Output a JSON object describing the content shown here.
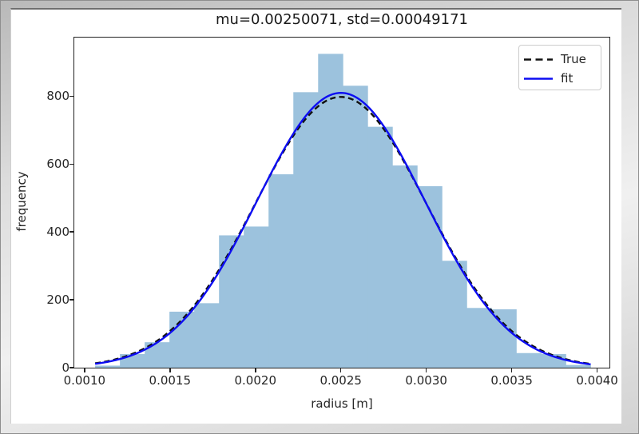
{
  "figure": {
    "background": "#ffffff",
    "frame_color": "#c9c9c9"
  },
  "chart_data": {
    "type": "histogram_with_fit_lines",
    "title": "mu=0.00250071, std=0.00049171",
    "xlabel": "radius [m]",
    "ylabel": "frequency",
    "xlim": [
      0.00094,
      0.004072
    ],
    "ylim": [
      0,
      973
    ],
    "grid": false,
    "legend_position": "upper right",
    "x_ticks": [
      0.001,
      0.0015,
      0.002,
      0.0025,
      0.003,
      0.0035,
      0.004
    ],
    "x_tick_labels": [
      "0.0010",
      "0.0015",
      "0.0020",
      "0.0025",
      "0.0030",
      "0.0035",
      "0.0040"
    ],
    "y_ticks": [
      0,
      200,
      400,
      600,
      800
    ],
    "y_tick_labels": [
      "0",
      "200",
      "400",
      "600",
      "800"
    ],
    "histogram": {
      "color": "#9cc2dd",
      "bin_edges": [
        0.001062,
        0.001207,
        0.001352,
        0.001497,
        0.001642,
        0.001787,
        0.001932,
        0.002077,
        0.002222,
        0.002367,
        0.002512,
        0.002657,
        0.002802,
        0.002947,
        0.003092,
        0.003237,
        0.003382,
        0.003527,
        0.003672,
        0.003817,
        0.003962
      ],
      "counts": [
        6,
        40,
        75,
        165,
        190,
        390,
        416,
        570,
        812,
        925,
        831,
        710,
        596,
        535,
        315,
        176,
        172,
        43,
        40,
        8
      ]
    },
    "curves": [
      {
        "name": "True",
        "shape": "gaussian",
        "mu": 0.0025,
        "std": 0.0005,
        "amplitude": 798,
        "line": "dashed",
        "color": "#111111"
      },
      {
        "name": "fit",
        "shape": "gaussian",
        "mu": 0.00250071,
        "std": 0.00049171,
        "amplitude": 810,
        "line": "solid",
        "color": "#0d0df2"
      }
    ]
  }
}
